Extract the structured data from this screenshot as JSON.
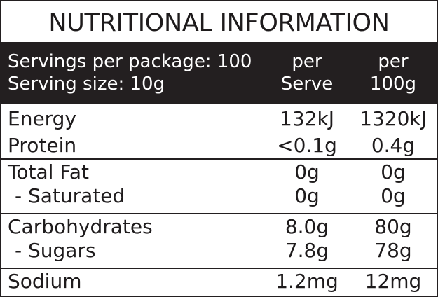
{
  "title": "NUTRITIONAL INFORMATION",
  "header": {
    "servings_per_package": "Servings per package: 100",
    "serving_size": "Serving size: 10g",
    "col1_line1": "per",
    "col1_line2": "Serve",
    "col2_line1": "per",
    "col2_line2": "100g"
  },
  "rows": [
    {
      "name": "Energy",
      "per_serve": "132kJ",
      "per_100g": "1320kJ"
    },
    {
      "name": "Protein",
      "per_serve": "<0.1g",
      "per_100g": "0.4g"
    },
    {
      "name": "Total Fat",
      "per_serve": "0g",
      "per_100g": "0g"
    },
    {
      "name": "- Saturated",
      "per_serve": "0g",
      "per_100g": "0g"
    },
    {
      "name": "Carbohydrates",
      "per_serve": "8.0g",
      "per_100g": "80g"
    },
    {
      "name": "- Sugars",
      "per_serve": "7.8g",
      "per_100g": "78g"
    },
    {
      "name": "Sodium",
      "per_serve": "1.2mg",
      "per_100g": "12mg"
    }
  ],
  "colors": {
    "border": "#231f20",
    "header_background": "#231f20",
    "header_text": "#ffffff",
    "text": "#1e1b1c"
  }
}
